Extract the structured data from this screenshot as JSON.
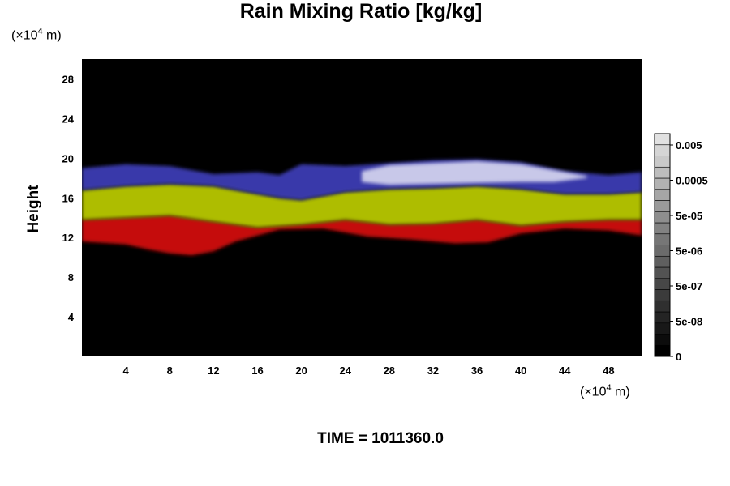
{
  "title": "Rain Mixing Ratio [kg/kg]",
  "y_unit": {
    "prefix": "(×10",
    "exp": "4",
    "suffix": " m)"
  },
  "x_unit": {
    "prefix": "(×10",
    "exp": "4",
    "suffix": " m)"
  },
  "ylabel": "Height",
  "footer": {
    "label": "TIME = ",
    "value": "1011360.0"
  },
  "colors": {
    "background": "#000000",
    "red": "#d01010",
    "yellow": "#b8c800",
    "blue": "#3c3cb4",
    "white": "#d8d8f0"
  },
  "chart_data": {
    "type": "heatmap",
    "title": "Rain Mixing Ratio [kg/kg]",
    "ylabel": "Height",
    "xlabel": "",
    "xlim": [
      0,
      51
    ],
    "ylim": [
      0,
      30
    ],
    "x_ticks": [
      "4",
      "8",
      "12",
      "16",
      "20",
      "24",
      "28",
      "32",
      "36",
      "40",
      "44",
      "48"
    ],
    "y_ticks": [
      "4",
      "8",
      "12",
      "16",
      "20",
      "24",
      "28"
    ],
    "colorbar": {
      "labels": [
        "0.005",
        "0.0005",
        "5e-05",
        "5e-06",
        "5e-07",
        "5e-08",
        "0"
      ],
      "levels": 20
    },
    "bands": [
      {
        "name": "red",
        "color": "#d01010",
        "top": [
          [
            0,
            13.8
          ],
          [
            4,
            14
          ],
          [
            8,
            14.2
          ],
          [
            12,
            13.6
          ],
          [
            16,
            13
          ],
          [
            20,
            13.3
          ],
          [
            24,
            13.8
          ],
          [
            28,
            13.3
          ],
          [
            32,
            13.4
          ],
          [
            36,
            13.8
          ],
          [
            40,
            13.2
          ],
          [
            44,
            13.6
          ],
          [
            48,
            13.8
          ],
          [
            51,
            13.8
          ]
        ],
        "bottom": [
          [
            0,
            11.6
          ],
          [
            4,
            11.3
          ],
          [
            6,
            10.8
          ],
          [
            8,
            10.4
          ],
          [
            10,
            10.2
          ],
          [
            12,
            10.6
          ],
          [
            14,
            11.6
          ],
          [
            18,
            12.8
          ],
          [
            22,
            12.9
          ],
          [
            26,
            12.1
          ],
          [
            30,
            11.8
          ],
          [
            34,
            11.4
          ],
          [
            37,
            11.5
          ],
          [
            40,
            12.4
          ],
          [
            44,
            12.9
          ],
          [
            48,
            12.7
          ],
          [
            51,
            12.2
          ]
        ]
      },
      {
        "name": "yellow",
        "color": "#b8c800",
        "top": [
          [
            0,
            16.8
          ],
          [
            4,
            17.2
          ],
          [
            8,
            17.4
          ],
          [
            12,
            17.2
          ],
          [
            16,
            16.4
          ],
          [
            18,
            16
          ],
          [
            20,
            15.8
          ],
          [
            24,
            16.6
          ],
          [
            28,
            16.9
          ],
          [
            32,
            17
          ],
          [
            36,
            17.2
          ],
          [
            40,
            16.9
          ],
          [
            44,
            16.4
          ],
          [
            48,
            16.4
          ],
          [
            51,
            16.6
          ]
        ],
        "bottom": [
          [
            0,
            13.8
          ],
          [
            4,
            14
          ],
          [
            8,
            14.2
          ],
          [
            12,
            13.6
          ],
          [
            16,
            13
          ],
          [
            20,
            13.3
          ],
          [
            24,
            13.8
          ],
          [
            28,
            13.3
          ],
          [
            32,
            13.4
          ],
          [
            36,
            13.8
          ],
          [
            40,
            13.2
          ],
          [
            44,
            13.6
          ],
          [
            48,
            13.8
          ],
          [
            51,
            13.8
          ]
        ]
      },
      {
        "name": "blue",
        "color": "#3c3cb4",
        "top": [
          [
            0,
            19
          ],
          [
            4,
            19.4
          ],
          [
            8,
            19.2
          ],
          [
            12,
            18.4
          ],
          [
            16,
            18.6
          ],
          [
            18,
            18.3
          ],
          [
            20,
            19.4
          ],
          [
            24,
            19.2
          ],
          [
            28,
            19.5
          ],
          [
            32,
            19.8
          ],
          [
            36,
            19.9
          ],
          [
            40,
            19.6
          ],
          [
            44,
            18.7
          ],
          [
            48,
            18.3
          ],
          [
            51,
            18.6
          ]
        ],
        "bottom": [
          [
            0,
            16.8
          ],
          [
            4,
            17.2
          ],
          [
            8,
            17.4
          ],
          [
            12,
            17.2
          ],
          [
            16,
            16.4
          ],
          [
            18,
            16
          ],
          [
            20,
            15.8
          ],
          [
            24,
            16.6
          ],
          [
            28,
            16.9
          ],
          [
            32,
            17
          ],
          [
            36,
            17.2
          ],
          [
            40,
            16.9
          ],
          [
            44,
            16.4
          ],
          [
            48,
            16.4
          ],
          [
            51,
            16.6
          ]
        ]
      },
      {
        "name": "white",
        "color": "#d8d8f0",
        "top": [
          [
            25.5,
            18.7
          ],
          [
            28,
            19.3
          ],
          [
            32,
            19.5
          ],
          [
            36,
            19.7
          ],
          [
            40,
            19.4
          ],
          [
            43,
            18.8
          ],
          [
            46,
            18.2
          ]
        ],
        "bottom": [
          [
            25.5,
            17.6
          ],
          [
            28,
            17.3
          ],
          [
            32,
            17.4
          ],
          [
            36,
            17.5
          ],
          [
            40,
            17.6
          ],
          [
            43,
            17.6
          ],
          [
            46,
            18.0
          ]
        ]
      }
    ]
  }
}
